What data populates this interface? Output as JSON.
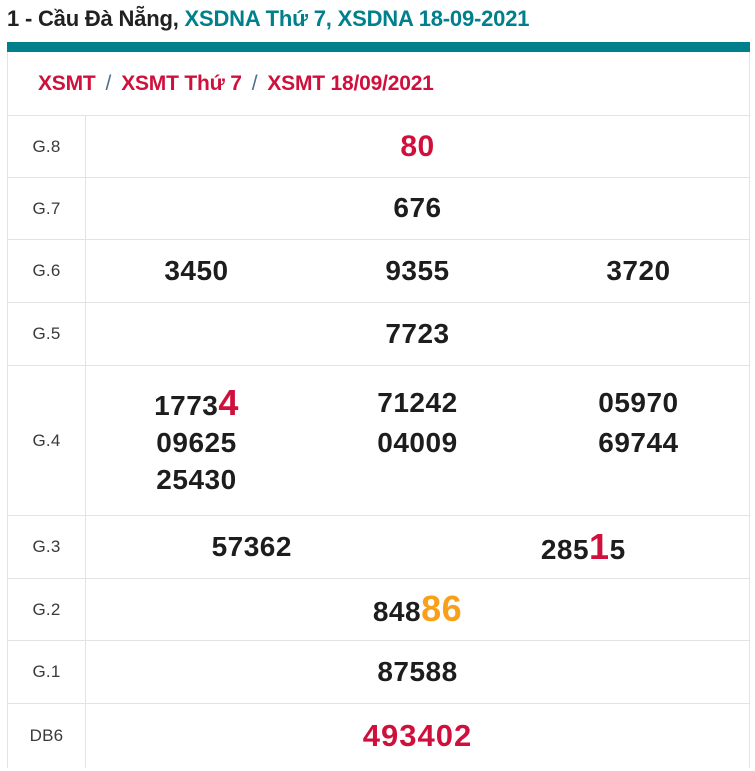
{
  "title": {
    "prefix": "1 - Cầu Đà Nẵng, ",
    "teal_part": "XSDNA Thứ 7, XSDNA 18-09-2021"
  },
  "breadcrumb": {
    "items": [
      "XSMT",
      "XSMT Thứ 7",
      "XSMT 18/09/2021"
    ],
    "separator": "/"
  },
  "colors": {
    "accent_red": "#d0103c",
    "teal": "#00808d",
    "orange": "#f9a01b",
    "number_text": "#1d1d1d",
    "border": "#e3e3e3"
  },
  "results": {
    "rows": [
      {
        "label": "G.8",
        "cells": [
          {
            "text": "80"
          }
        ]
      },
      {
        "label": "G.7",
        "cells": [
          {
            "text": "676"
          }
        ]
      },
      {
        "label": "G.6",
        "cells": [
          {
            "text": "3450"
          },
          {
            "text": "9355"
          },
          {
            "text": "3720"
          }
        ]
      },
      {
        "label": "G.5",
        "cells": [
          {
            "text": "7723"
          }
        ]
      },
      {
        "label": "G.4",
        "cells": [
          {
            "pre": "1773",
            "hl": "4"
          },
          {
            "text": "71242"
          },
          {
            "text": "05970"
          },
          {
            "text": "09625"
          },
          {
            "text": "04009"
          },
          {
            "text": "69744"
          },
          {
            "text": "25430"
          }
        ]
      },
      {
        "label": "G.3",
        "cells": [
          {
            "text": "57362"
          },
          {
            "pre": "285",
            "hl": "1",
            "post": "5"
          }
        ]
      },
      {
        "label": "G.2",
        "cells": [
          {
            "pre": "848",
            "hl": "86"
          }
        ]
      },
      {
        "label": "G.1",
        "cells": [
          {
            "text": "87588"
          }
        ]
      },
      {
        "label": "DB6",
        "cells": [
          {
            "text": "493402"
          }
        ]
      }
    ]
  }
}
